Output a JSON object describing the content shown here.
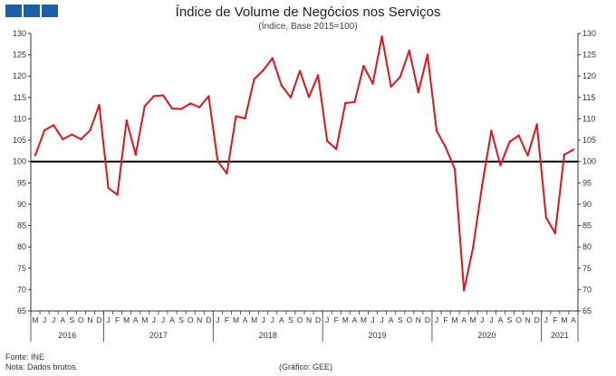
{
  "header": {
    "title": "Índice de Volume de Negócios nos Serviços",
    "subtitle": "(Índice, Base 2015=100)"
  },
  "footer": {
    "source": "Fonte: INE",
    "note": "Nota: Dados brutos.",
    "credit": "(Gráfico: GEE)"
  },
  "colors": {
    "series": "#e0141e",
    "reference": "#000000",
    "logo": "#1f5fa8"
  },
  "chart_data": {
    "type": "line",
    "title": "Índice de Volume de Negócios nos Serviços",
    "subtitle": "(Índice, Base 2015=100)",
    "ylim": [
      65,
      130
    ],
    "yticks": [
      65,
      70,
      75,
      80,
      85,
      90,
      95,
      100,
      105,
      110,
      115,
      120,
      125,
      130
    ],
    "reference_line": 100,
    "grid": false,
    "month_labels": [
      "M",
      "J",
      "J",
      "A",
      "S",
      "O",
      "N",
      "D",
      "J",
      "F",
      "M",
      "A",
      "M",
      "J",
      "J",
      "A",
      "S",
      "O",
      "N",
      "D",
      "J",
      "F",
      "M",
      "A",
      "M",
      "J",
      "J",
      "A",
      "S",
      "O",
      "N",
      "D",
      "J",
      "F",
      "M",
      "A",
      "M",
      "J",
      "J",
      "A",
      "S",
      "O",
      "N",
      "D",
      "J",
      "F",
      "M",
      "A",
      "M",
      "J",
      "J",
      "A",
      "S",
      "O",
      "N",
      "D",
      "J",
      "F",
      "M",
      "A"
    ],
    "years": [
      {
        "label": "2016",
        "start": 0,
        "count": 8
      },
      {
        "label": "2017",
        "start": 8,
        "count": 12
      },
      {
        "label": "2018",
        "start": 20,
        "count": 12
      },
      {
        "label": "2019",
        "start": 32,
        "count": 12
      },
      {
        "label": "2020",
        "start": 44,
        "count": 12
      },
      {
        "label": "2021",
        "start": 56,
        "count": 4
      }
    ],
    "values": [
      101.5,
      107.3,
      108.5,
      105.2,
      106.3,
      105.2,
      107.3,
      113.2,
      93.8,
      92.2,
      109.6,
      101.6,
      113.0,
      115.3,
      115.5,
      112.4,
      112.3,
      113.6,
      112.7,
      115.3,
      100.0,
      97.2,
      110.6,
      110.1,
      119.3,
      121.4,
      124.2,
      117.8,
      115.0,
      121.2,
      115.1,
      120.2,
      104.8,
      102.9,
      113.7,
      113.9,
      122.4,
      118.2,
      129.3,
      117.5,
      119.8,
      126.0,
      116.2,
      125.0,
      107.2,
      103.3,
      98.2,
      69.8,
      79.8,
      94.5,
      107.2,
      99.1,
      104.6,
      106.1,
      101.4,
      108.7,
      86.9,
      83.2,
      101.6,
      102.8
    ]
  }
}
